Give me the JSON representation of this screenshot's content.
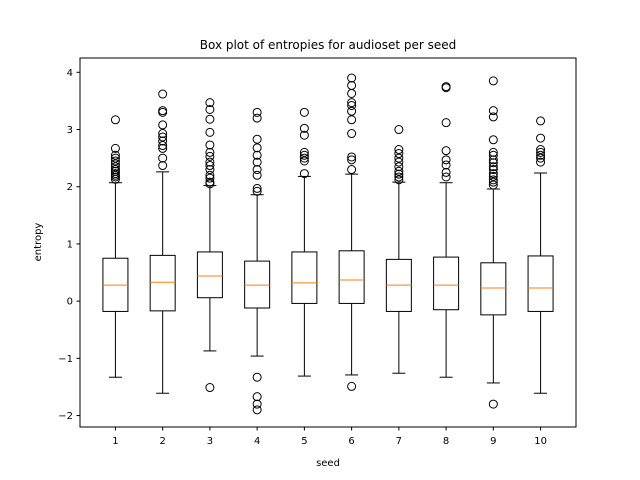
{
  "chart_data": {
    "type": "box",
    "title": "Box plot of entropies for audioset per seed",
    "xlabel": "seed",
    "ylabel": "entropy",
    "categories": [
      "1",
      "2",
      "3",
      "4",
      "5",
      "6",
      "7",
      "8",
      "9",
      "10"
    ],
    "ylim": [
      -2.2,
      4.25
    ],
    "yticks": [
      -2,
      -1,
      0,
      1,
      2,
      3,
      4
    ],
    "grid": false,
    "legend": "none",
    "colors": {
      "box": "#000000",
      "median": "#ff7f0e",
      "flier": "#000000"
    },
    "boxes": [
      {
        "seed": "1",
        "whislo": -1.33,
        "q1": -0.18,
        "med": 0.28,
        "q3": 0.75,
        "whishi": 2.07,
        "fliers": [
          2.13,
          2.17,
          2.2,
          2.23,
          2.27,
          2.3,
          2.35,
          2.4,
          2.45,
          2.5,
          2.55,
          2.67,
          3.17
        ]
      },
      {
        "seed": "2",
        "whislo": -1.61,
        "q1": -0.17,
        "med": 0.33,
        "q3": 0.8,
        "whishi": 2.26,
        "fliers": [
          2.37,
          2.5,
          2.67,
          2.72,
          2.8,
          2.87,
          2.93,
          3.08,
          3.3,
          3.33,
          3.62
        ]
      },
      {
        "seed": "3",
        "whislo": -0.87,
        "q1": 0.06,
        "med": 0.44,
        "q3": 0.86,
        "whishi": 2.02,
        "fliers": [
          -1.51,
          2.05,
          2.08,
          2.15,
          2.2,
          2.3,
          2.37,
          2.43,
          2.53,
          2.6,
          2.73,
          2.95,
          3.18,
          3.35,
          3.47
        ]
      },
      {
        "seed": "4",
        "whislo": -0.96,
        "q1": -0.12,
        "med": 0.28,
        "q3": 0.7,
        "whishi": 1.86,
        "fliers": [
          -1.33,
          -1.67,
          -1.8,
          -1.9,
          1.92,
          1.97,
          2.2,
          2.3,
          2.43,
          2.55,
          2.68,
          2.83,
          3.2,
          3.3
        ]
      },
      {
        "seed": "5",
        "whislo": -1.31,
        "q1": -0.04,
        "med": 0.32,
        "q3": 0.86,
        "whishi": 2.18,
        "fliers": [
          2.23,
          2.45,
          2.5,
          2.55,
          2.6,
          2.9,
          3.02,
          3.3
        ]
      },
      {
        "seed": "6",
        "whislo": -1.29,
        "q1": -0.04,
        "med": 0.37,
        "q3": 0.88,
        "whishi": 2.22,
        "fliers": [
          -1.49,
          2.3,
          2.47,
          2.52,
          2.93,
          3.17,
          3.32,
          3.42,
          3.47,
          3.63,
          3.77,
          3.9
        ]
      },
      {
        "seed": "7",
        "whislo": -1.26,
        "q1": -0.18,
        "med": 0.28,
        "q3": 0.73,
        "whishi": 2.08,
        "fliers": [
          2.12,
          2.17,
          2.22,
          2.27,
          2.35,
          2.43,
          2.5,
          2.58,
          2.65,
          3.0
        ]
      },
      {
        "seed": "8",
        "whislo": -1.33,
        "q1": -0.15,
        "med": 0.28,
        "q3": 0.77,
        "whishi": 2.07,
        "fliers": [
          2.17,
          2.25,
          2.38,
          2.47,
          2.63,
          3.12,
          3.73,
          3.75
        ]
      },
      {
        "seed": "9",
        "whislo": -1.43,
        "q1": -0.24,
        "med": 0.23,
        "q3": 0.67,
        "whishi": 1.96,
        "fliers": [
          -1.8,
          2.03,
          2.08,
          2.12,
          2.18,
          2.23,
          2.3,
          2.35,
          2.42,
          2.47,
          2.55,
          2.6,
          2.82,
          3.22,
          3.33,
          3.85
        ]
      },
      {
        "seed": "10",
        "whislo": -1.61,
        "q1": -0.18,
        "med": 0.23,
        "q3": 0.79,
        "whishi": 2.24,
        "fliers": [
          2.43,
          2.5,
          2.55,
          2.6,
          2.65,
          2.85,
          3.15
        ]
      }
    ]
  }
}
